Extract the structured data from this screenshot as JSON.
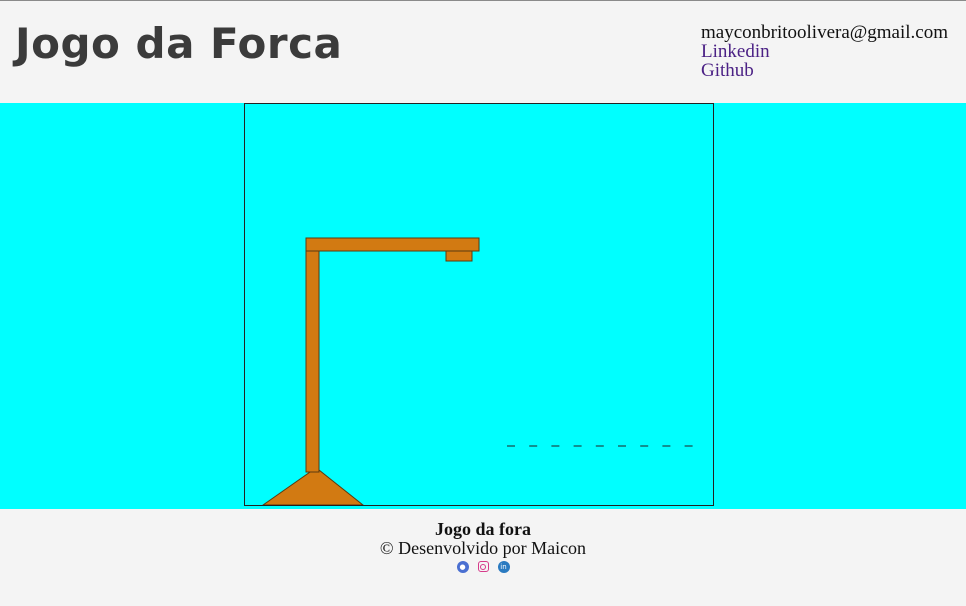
{
  "header": {
    "title": "Jogo da Forca",
    "email": "mayconbritoolivera@gmail.com",
    "links": [
      "Linkedin",
      "Github"
    ]
  },
  "game": {
    "blank_count": 9,
    "blank_char": "_",
    "gallows_color": "#d27a12",
    "background_color": "#00ffff"
  },
  "footer": {
    "title": "Jogo da fora",
    "credit": "© Desenvolvido por Maicon",
    "icons": [
      "github-icon",
      "instagram-icon",
      "linkedin-icon"
    ]
  }
}
